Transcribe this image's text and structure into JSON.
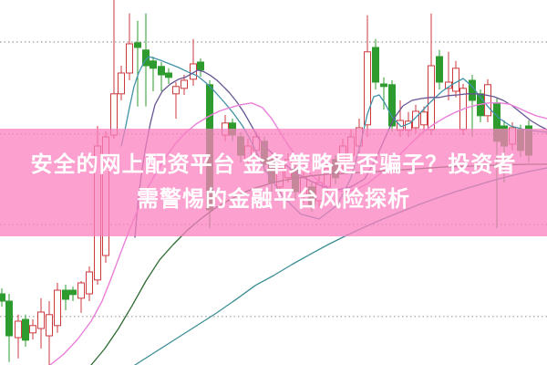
{
  "headline": {
    "line1": "安全的网上配资平台 金夆策略是否骗子？投资者",
    "line2": "需警惕的金融平台风险探析"
  },
  "banner": {
    "bg_color": "rgba(250,128,191,0.75)",
    "text_color": "#ffffff"
  },
  "chart_data": {
    "type": "candlestick",
    "title": "",
    "xlabel": "",
    "ylabel": "",
    "xlim": [
      0,
      600
    ],
    "ylim": [
      0,
      100
    ],
    "grid": {
      "style": "dotted",
      "y_values": [
        88.5,
        63.3,
        38.5,
        13.3
      ]
    },
    "legend": "none",
    "axis_labels_visible": false,
    "colors": {
      "up": "#cc3a3e",
      "up_fill": "#ffffff",
      "down": "#2d9b2d",
      "grid": "#9a9a9a",
      "background": "#ffffff"
    },
    "candle_format": [
      "x",
      "open",
      "high",
      "low",
      "close"
    ],
    "candles": [
      [
        2,
        19.5,
        21.0,
        16.0,
        17.5
      ],
      [
        10,
        17.5,
        19.5,
        0.8,
        8.0
      ],
      [
        20,
        7.5,
        13.8,
        1.8,
        12.0
      ],
      [
        28,
        12.5,
        13.8,
        5.0,
        6.8
      ],
      [
        36,
        8.8,
        12.5,
        7.0,
        10.8
      ],
      [
        45,
        10.0,
        18.3,
        4.5,
        14.5
      ],
      [
        54,
        8.0,
        17.5,
        0.0,
        13.8
      ],
      [
        63,
        10.8,
        22.5,
        8.8,
        20.5
      ],
      [
        72,
        20.5,
        22.0,
        15.0,
        18.0
      ],
      [
        80,
        20.5,
        21.5,
        17.5,
        19.3
      ],
      [
        89,
        18.3,
        23.0,
        14.3,
        22.5
      ],
      [
        98,
        19.5,
        27.0,
        17.5,
        25.5
      ],
      [
        107,
        23.3,
        65.5,
        22.0,
        60.0
      ],
      [
        116,
        30.0,
        64.0,
        28.0,
        62.5
      ],
      [
        125,
        63.0,
        100.0,
        62.0,
        74.3
      ],
      [
        133,
        74.3,
        82.0,
        72.5,
        80.0
      ],
      [
        142,
        80.0,
        96.3,
        78.0,
        88.0
      ],
      [
        151,
        88.3,
        94.3,
        70.8,
        87.0
      ],
      [
        160,
        86.3,
        96.3,
        70.8,
        82.0
      ],
      [
        168,
        83.3,
        84.5,
        75.0,
        81.3
      ],
      [
        177,
        81.8,
        83.0,
        75.0,
        79.5
      ],
      [
        185,
        80.0,
        81.3,
        77.0,
        78.8
      ],
      [
        193,
        74.3,
        77.5,
        67.5,
        76.3
      ],
      [
        202,
        75.8,
        79.5,
        74.0,
        78.0
      ],
      [
        212,
        78.3,
        89.3,
        76.5,
        82.5
      ],
      [
        220,
        83.0,
        84.0,
        79.0,
        80.8
      ],
      [
        230,
        76.8,
        78.0,
        37.5,
        42.5
      ],
      [
        247,
        63.0,
        68.5,
        61.3,
        66.3
      ],
      [
        255,
        66.3,
        67.5,
        61.3,
        63.0
      ],
      [
        264,
        62.5,
        63.8,
        55.5,
        57.5
      ],
      [
        272,
        56.3,
        62.0,
        55.0,
        60.0
      ],
      [
        281,
        58.8,
        63.8,
        57.0,
        62.5
      ],
      [
        290,
        61.3,
        62.5,
        53.0,
        55.0
      ],
      [
        298,
        56.3,
        57.5,
        47.5,
        50.0
      ],
      [
        307,
        48.8,
        55.5,
        47.0,
        53.8
      ],
      [
        316,
        51.3,
        58.0,
        50.0,
        56.3
      ],
      [
        324,
        53.8,
        55.0,
        45.5,
        47.5
      ],
      [
        333,
        46.3,
        53.0,
        44.5,
        51.3
      ],
      [
        342,
        48.8,
        50.0,
        42.0,
        43.8
      ],
      [
        350,
        45.0,
        51.8,
        43.0,
        50.0
      ],
      [
        359,
        48.8,
        55.5,
        47.0,
        53.8
      ],
      [
        368,
        56.3,
        57.5,
        49.5,
        51.3
      ],
      [
        376,
        55.0,
        62.0,
        53.0,
        60.0
      ],
      [
        385,
        57.5,
        64.5,
        55.5,
        62.5
      ],
      [
        394,
        60.0,
        67.5,
        58.0,
        65.0
      ],
      [
        403,
        65.8,
        95.8,
        62.5,
        85.8
      ],
      [
        412,
        87.0,
        89.3,
        75.5,
        77.5
      ],
      [
        421,
        77.0,
        78.8,
        70.0,
        76.3
      ],
      [
        430,
        76.8,
        78.0,
        63.8,
        65.5
      ],
      [
        439,
        64.3,
        72.5,
        62.5,
        67.0
      ],
      [
        448,
        64.3,
        69.3,
        62.5,
        66.8
      ],
      [
        456,
        65.0,
        71.3,
        63.5,
        69.5
      ],
      [
        465,
        65.8,
        70.8,
        64.3,
        69.3
      ],
      [
        473,
        64.5,
        96.3,
        63.0,
        82.0
      ],
      [
        482,
        84.5,
        86.3,
        75.5,
        77.5
      ],
      [
        492,
        75.8,
        85.8,
        72.5,
        77.5
      ],
      [
        500,
        75.0,
        83.3,
        73.3,
        81.3
      ],
      [
        508,
        64.5,
        77.0,
        63.0,
        75.8
      ],
      [
        518,
        78.0,
        79.5,
        62.5,
        72.5
      ],
      [
        527,
        74.3,
        75.5,
        66.5,
        68.3
      ],
      [
        535,
        68.3,
        78.3,
        66.5,
        76.8
      ],
      [
        545,
        71.8,
        73.0,
        37.5,
        61.3
      ],
      [
        553,
        65.5,
        67.0,
        50.0,
        60.0
      ],
      [
        562,
        60.5,
        66.5,
        58.8,
        65.0
      ],
      [
        571,
        64.5,
        65.8,
        57.0,
        58.8
      ],
      [
        580,
        65.5,
        67.0,
        55.5,
        57.5
      ]
    ],
    "moving_averages": [
      {
        "name": "ma-short-teal",
        "color": "#4293a8",
        "width": 1.3,
        "points": [
          [
            133,
            60.0
          ],
          [
            137,
            64.3
          ],
          [
            142,
            70.5
          ],
          [
            147,
            76.3
          ],
          [
            152,
            80.0
          ],
          [
            158,
            83.0
          ],
          [
            163,
            84.5
          ],
          [
            170,
            84.0
          ],
          [
            178,
            83.3
          ],
          [
            186,
            82.5
          ],
          [
            196,
            81.5
          ],
          [
            206,
            80.3
          ],
          [
            216,
            79.3
          ],
          [
            226,
            77.3
          ],
          [
            236,
            74.8
          ],
          [
            246,
            72.0
          ],
          [
            256,
            69.0
          ],
          [
            266,
            65.5
          ],
          [
            274,
            62.0
          ],
          [
            290,
            53.8
          ],
          [
            310,
            46.3
          ],
          [
            330,
            41.3
          ],
          [
            350,
            40.0
          ],
          [
            370,
            43.8
          ],
          [
            385,
            51.3
          ],
          [
            395,
            60.0
          ],
          [
            403,
            68.8
          ],
          [
            410,
            73.5
          ],
          [
            416,
            74.0
          ],
          [
            422,
            71.8
          ],
          [
            430,
            68.0
          ],
          [
            440,
            65.3
          ],
          [
            450,
            66.3
          ],
          [
            460,
            68.8
          ],
          [
            472,
            72.0
          ],
          [
            485,
            75.0
          ],
          [
            497,
            77.0
          ],
          [
            508,
            78.5
          ],
          [
            518,
            76.3
          ],
          [
            528,
            73.0
          ],
          [
            538,
            70.0
          ],
          [
            548,
            67.5
          ],
          [
            560,
            65.5
          ],
          [
            575,
            64.5
          ],
          [
            590,
            64.0
          ],
          [
            600,
            63.8
          ]
        ]
      },
      {
        "name": "ma-mid-purple",
        "color": "#675593",
        "width": 1.3,
        "points": [
          [
            148,
            35.0
          ],
          [
            152,
            46.3
          ],
          [
            156,
            53.8
          ],
          [
            160,
            60.0
          ],
          [
            165,
            66.3
          ],
          [
            170,
            71.3
          ],
          [
            178,
            75.0
          ],
          [
            187,
            77.0
          ],
          [
            196,
            78.3
          ],
          [
            203,
            78.8
          ],
          [
            210,
            79.8
          ],
          [
            217,
            80.8
          ],
          [
            224,
            80.3
          ],
          [
            231,
            79.3
          ],
          [
            238,
            78.0
          ],
          [
            245,
            76.3
          ],
          [
            252,
            74.5
          ],
          [
            260,
            72.0
          ],
          [
            268,
            69.0
          ],
          [
            276,
            65.5
          ],
          [
            284,
            62.0
          ],
          [
            295,
            58.8
          ],
          [
            310,
            55.5
          ],
          [
            325,
            52.5
          ],
          [
            340,
            50.5
          ],
          [
            355,
            48.8
          ],
          [
            370,
            48.0
          ],
          [
            385,
            48.8
          ],
          [
            400,
            51.0
          ],
          [
            412,
            56.3
          ],
          [
            422,
            62.0
          ],
          [
            432,
            67.5
          ],
          [
            442,
            71.0
          ],
          [
            452,
            72.5
          ],
          [
            462,
            73.0
          ],
          [
            472,
            73.3
          ],
          [
            482,
            73.3
          ],
          [
            492,
            73.8
          ],
          [
            502,
            74.0
          ],
          [
            512,
            74.3
          ],
          [
            522,
            74.3
          ],
          [
            532,
            74.0
          ],
          [
            542,
            73.5
          ],
          [
            552,
            72.5
          ],
          [
            562,
            71.0
          ],
          [
            572,
            69.0
          ],
          [
            582,
            67.0
          ],
          [
            592,
            65.5
          ],
          [
            600,
            64.5
          ]
        ]
      },
      {
        "name": "ma-long-magenta",
        "color": "#ea7fd9",
        "width": 1.4,
        "points": [
          [
            55,
            0.0
          ],
          [
            70,
            3.0
          ],
          [
            85,
            7.0
          ],
          [
            100,
            12.0
          ],
          [
            112,
            17.5
          ],
          [
            122,
            23.8
          ],
          [
            132,
            30.5
          ],
          [
            142,
            37.0
          ],
          [
            152,
            43.0
          ],
          [
            162,
            48.5
          ],
          [
            172,
            53.0
          ],
          [
            182,
            57.0
          ],
          [
            192,
            60.5
          ],
          [
            202,
            63.3
          ],
          [
            215,
            66.0
          ],
          [
            228,
            68.0
          ],
          [
            240,
            69.5
          ],
          [
            252,
            70.5
          ],
          [
            264,
            71.3
          ],
          [
            276,
            71.8
          ],
          [
            288,
            70.5
          ],
          [
            298,
            67.5
          ],
          [
            308,
            63.5
          ],
          [
            318,
            59.5
          ],
          [
            330,
            55.5
          ],
          [
            342,
            52.0
          ],
          [
            354,
            49.5
          ],
          [
            366,
            48.0
          ],
          [
            378,
            47.5
          ],
          [
            390,
            48.0
          ],
          [
            402,
            49.5
          ],
          [
            415,
            52.0
          ],
          [
            428,
            55.0
          ],
          [
            440,
            58.0
          ],
          [
            452,
            61.0
          ],
          [
            464,
            63.8
          ],
          [
            476,
            66.0
          ],
          [
            488,
            67.8
          ],
          [
            500,
            69.3
          ],
          [
            512,
            70.5
          ],
          [
            524,
            71.3
          ],
          [
            536,
            71.8
          ],
          [
            548,
            71.8
          ],
          [
            558,
            71.5
          ],
          [
            568,
            70.5
          ],
          [
            578,
            69.3
          ],
          [
            588,
            68.3
          ],
          [
            600,
            67.5
          ]
        ]
      },
      {
        "name": "ma-xlong-green",
        "color": "#2e6b34",
        "width": 1.3,
        "points": [
          [
            100,
            0.0
          ],
          [
            115,
            4.5
          ],
          [
            130,
            10.0
          ],
          [
            145,
            16.3
          ],
          [
            160,
            23.0
          ],
          [
            175,
            28.8
          ],
          [
            190,
            33.0
          ],
          [
            205,
            36.8
          ],
          [
            220,
            40.0
          ],
          [
            235,
            42.8
          ],
          [
            250,
            45.0
          ],
          [
            265,
            47.0
          ],
          [
            280,
            48.5
          ],
          [
            300,
            50.0
          ],
          [
            320,
            51.0
          ],
          [
            340,
            51.8
          ],
          [
            360,
            52.3
          ],
          [
            380,
            52.5
          ],
          [
            400,
            52.8
          ],
          [
            430,
            53.3
          ],
          [
            460,
            53.8
          ],
          [
            490,
            54.3
          ],
          [
            520,
            54.5
          ],
          [
            550,
            54.8
          ],
          [
            580,
            55.0
          ],
          [
            600,
            55.0
          ]
        ]
      },
      {
        "name": "ma-xlong-teal",
        "color": "#3d8f96",
        "width": 1.3,
        "points": [
          [
            148,
            0.0
          ],
          [
            170,
            3.5
          ],
          [
            192,
            7.0
          ],
          [
            214,
            10.5
          ],
          [
            236,
            14.0
          ],
          [
            258,
            17.8
          ],
          [
            280,
            21.8
          ],
          [
            300,
            24.5
          ],
          [
            320,
            27.5
          ],
          [
            340,
            30.3
          ],
          [
            360,
            33.0
          ],
          [
            380,
            35.5
          ],
          [
            400,
            37.8
          ],
          [
            420,
            40.0
          ],
          [
            440,
            42.0
          ],
          [
            460,
            44.0
          ],
          [
            480,
            45.8
          ],
          [
            500,
            47.5
          ],
          [
            520,
            49.0
          ],
          [
            540,
            50.5
          ],
          [
            560,
            51.8
          ],
          [
            580,
            53.0
          ],
          [
            600,
            54.0
          ]
        ]
      }
    ]
  }
}
